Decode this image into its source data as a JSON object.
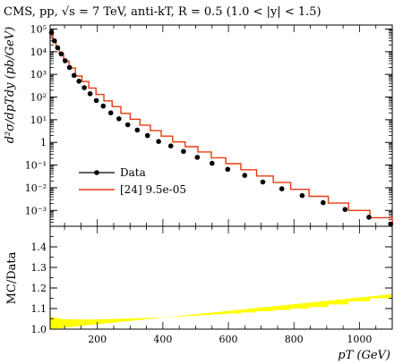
{
  "chart_data": [
    {
      "type": "line",
      "title": "CMS, pp, √s = 7 TeV, anti-kT, R = 0.5 (1.0 < |y| < 1.5)",
      "ylabel": "d²σ/dpTdy (pb/GeV)",
      "xlabel": "",
      "yscale": "log",
      "xlim": [
        56,
        1100
      ],
      "ylim": [
        0.0002,
        150000
      ],
      "y_tick_labels": [
        "10⁵",
        "10⁴",
        "10³",
        "10²",
        "10¹",
        "1",
        "10⁻¹",
        "10⁻²",
        "10⁻³"
      ],
      "legend_placement": "lower-left",
      "legend": [
        "Data",
        "[24] 9.5e-05"
      ],
      "series": [
        {
          "name": "Data",
          "style": "points",
          "color": "#000000",
          "x": [
            60,
            69,
            79,
            90,
            102,
            115,
            129,
            144,
            160,
            178,
            197,
            218,
            241,
            266,
            293,
            322,
            353,
            387,
            424,
            463,
            505,
            550,
            598,
            650,
            705,
            763,
            825,
            889,
            956,
            1029,
            1095
          ],
          "y": [
            70000,
            30000,
            15000,
            8000,
            4000,
            2000,
            900,
            500,
            260,
            140,
            70,
            40,
            20,
            11,
            6,
            3.5,
            2,
            1.1,
            0.7,
            0.4,
            0.22,
            0.12,
            0.065,
            0.035,
            0.018,
            0.009,
            0.0045,
            0.0022,
            0.0011,
            0.0005,
            0.00025
          ]
        },
        {
          "name": "[24] 9.5e-05",
          "style": "step",
          "color": "#e83a10",
          "bin_edges": [
            56,
            64,
            74,
            84,
            97,
            114,
            133,
            153,
            174,
            196,
            220,
            245,
            272,
            300,
            330,
            362,
            395,
            430,
            468,
            507,
            548,
            592,
            638,
            686,
            737,
            790,
            846,
            905,
            967,
            1032,
            1101
          ],
          "y": [
            70000,
            30000,
            15000,
            8000,
            3800,
            1900,
            850,
            480,
            250,
            130,
            68,
            38,
            19,
            10.5,
            5.8,
            3.3,
            1.9,
            1.05,
            0.65,
            0.38,
            0.21,
            0.115,
            0.062,
            0.033,
            0.017,
            0.0085,
            0.0042,
            0.0021,
            0.001,
            0.00048,
            0.00024
          ]
        }
      ]
    },
    {
      "type": "area",
      "title": "",
      "ylabel": "MC/Data",
      "xlabel": "pT (GeV)",
      "xlim": [
        56,
        1100
      ],
      "ylim": [
        1.0,
        1.5
      ],
      "x_ticks": [
        200,
        400,
        600,
        800,
        1000
      ],
      "y_ticks": [
        1.0,
        1.1,
        1.2,
        1.3,
        1.4
      ],
      "series": [
        {
          "name": "",
          "color": "#ffff00",
          "bin_edges": [
            56,
            64,
            74,
            84,
            97,
            114,
            133,
            153,
            174,
            196,
            220,
            245,
            272,
            300,
            330,
            362,
            395,
            430,
            468,
            507,
            548,
            592,
            638,
            686,
            737,
            790,
            846,
            905,
            967,
            1032,
            1101
          ],
          "y": [
            1.06,
            1.055,
            1.053,
            1.05,
            1.048,
            1.048,
            1.047,
            1.047,
            1.047,
            1.048,
            1.049,
            1.05,
            1.051,
            1.052,
            1.054,
            1.056,
            1.058,
            1.061,
            1.064,
            1.068,
            1.072,
            1.076,
            1.081,
            1.087,
            1.093,
            1.1,
            1.108,
            1.12,
            1.135,
            1.15,
            1.17
          ]
        }
      ]
    }
  ]
}
